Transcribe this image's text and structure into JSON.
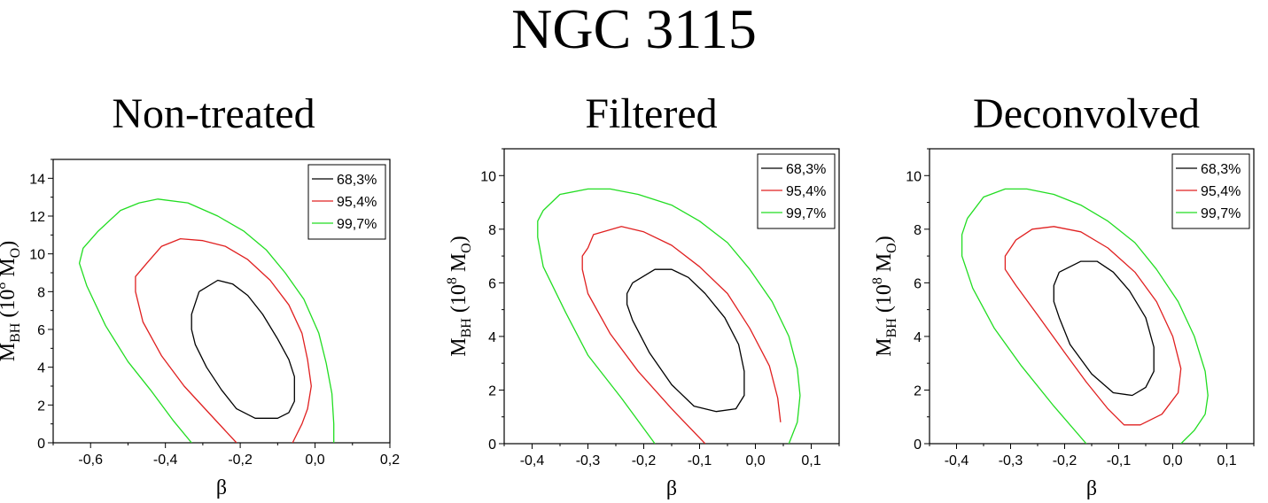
{
  "title": "NGC 3115",
  "chart_data": [
    {
      "type": "line",
      "subtitle": "Non-treated",
      "xlabel": "β",
      "ylabel_main": "M",
      "ylabel_sub": "BH",
      "ylabel_paren": "(10",
      "ylabel_exp": "8",
      "ylabel_unit": "M",
      "ylabel_unit_sub": "O",
      "ylabel_close": ")",
      "xlim": [
        -0.7,
        0.2
      ],
      "ylim": [
        0,
        15
      ],
      "xticks": [
        -0.6,
        -0.4,
        -0.2,
        0.0,
        0.2
      ],
      "xtick_labels": [
        "-0,6",
        "-0,4",
        "-0,2",
        "0,0",
        "0,2"
      ],
      "yticks": [
        0,
        2,
        4,
        6,
        8,
        10,
        12,
        14
      ],
      "ytick_labels": [
        "0",
        "2",
        "4",
        "6",
        "8",
        "10",
        "12",
        "14"
      ],
      "legend": [
        "68,3%",
        "95,4%",
        "99,7%"
      ],
      "colors": [
        "#000000",
        "#e02020",
        "#22dd22"
      ],
      "series": [
        {
          "name": "68,3%",
          "x": [
            -0.31,
            -0.26,
            -0.22,
            -0.18,
            -0.14,
            -0.1,
            -0.07,
            -0.055,
            -0.055,
            -0.07,
            -0.1,
            -0.16,
            -0.21,
            -0.25,
            -0.29,
            -0.32,
            -0.33,
            -0.33,
            -0.31
          ],
          "y": [
            8.0,
            8.6,
            8.4,
            7.8,
            6.8,
            5.5,
            4.4,
            3.5,
            2.2,
            1.6,
            1.3,
            1.3,
            1.8,
            2.8,
            4.0,
            5.2,
            6.0,
            6.8,
            8.0
          ]
        },
        {
          "name": "95,4%",
          "x": [
            -0.45,
            -0.41,
            -0.36,
            -0.3,
            -0.24,
            -0.18,
            -0.12,
            -0.07,
            -0.035,
            -0.02,
            -0.01,
            -0.02,
            -0.035,
            -0.05,
            -0.06,
            null,
            -0.21,
            -0.28,
            -0.35,
            -0.41,
            -0.46,
            -0.48,
            -0.48,
            -0.45
          ],
          "y": [
            9.5,
            10.4,
            10.8,
            10.7,
            10.4,
            9.7,
            8.6,
            7.3,
            5.8,
            4.4,
            3.0,
            1.8,
            1.0,
            0.4,
            0.0,
            null,
            0.0,
            1.5,
            3.0,
            4.6,
            6.4,
            8.0,
            8.8,
            9.5
          ]
        },
        {
          "name": "99,7%",
          "x": [
            -0.58,
            -0.52,
            -0.47,
            -0.42,
            -0.34,
            -0.26,
            -0.19,
            -0.13,
            -0.08,
            -0.03,
            0.01,
            0.03,
            0.045,
            0.05,
            0.05,
            null,
            -0.33,
            -0.38,
            -0.44,
            -0.5,
            -0.56,
            -0.61,
            -0.63,
            -0.62,
            -0.58
          ],
          "y": [
            11.2,
            12.3,
            12.7,
            12.9,
            12.7,
            12.0,
            11.2,
            10.2,
            9.0,
            7.6,
            5.8,
            4.2,
            2.6,
            1.0,
            0.0,
            null,
            0.0,
            1.2,
            2.8,
            4.3,
            6.2,
            8.3,
            9.5,
            10.3,
            11.2
          ]
        }
      ]
    },
    {
      "type": "line",
      "subtitle": "Filtered",
      "xlabel": "β",
      "ylabel_main": "M",
      "ylabel_sub": "BH",
      "ylabel_paren": "(10",
      "ylabel_exp": "8",
      "ylabel_unit": "M",
      "ylabel_unit_sub": "O",
      "ylabel_close": ")",
      "xlim": [
        -0.45,
        0.15
      ],
      "ylim": [
        0,
        11
      ],
      "xticks": [
        -0.4,
        -0.3,
        -0.2,
        -0.1,
        0.0,
        0.1
      ],
      "xtick_labels": [
        "-0,4",
        "-0,3",
        "-0,2",
        "-0,1",
        "0,0",
        "0,1"
      ],
      "yticks": [
        0,
        2,
        4,
        6,
        8,
        10
      ],
      "ytick_labels": [
        "0",
        "2",
        "4",
        "6",
        "8",
        "10"
      ],
      "legend": [
        "68,3%",
        "95,4%",
        "99,7%"
      ],
      "colors": [
        "#000000",
        "#e02020",
        "#22dd22"
      ],
      "series": [
        {
          "name": "68,3%",
          "x": [
            -0.22,
            -0.18,
            -0.15,
            -0.12,
            -0.09,
            -0.055,
            -0.03,
            -0.02,
            -0.02,
            -0.035,
            -0.07,
            -0.11,
            -0.15,
            -0.19,
            -0.22,
            -0.23,
            -0.23,
            -0.22
          ],
          "y": [
            6.0,
            6.5,
            6.5,
            6.2,
            5.6,
            4.7,
            3.7,
            2.7,
            1.8,
            1.3,
            1.2,
            1.4,
            2.2,
            3.4,
            4.6,
            5.2,
            5.6,
            6.0
          ]
        },
        {
          "name": "95,4%",
          "x": [
            -0.3,
            -0.29,
            -0.24,
            -0.2,
            -0.15,
            -0.1,
            -0.05,
            -0.01,
            0.025,
            0.04,
            0.045,
            null,
            -0.05,
            null,
            -0.09,
            -0.15,
            -0.21,
            -0.26,
            -0.3,
            -0.31,
            -0.31,
            -0.3
          ],
          "y": [
            7.3,
            7.8,
            8.1,
            7.9,
            7.4,
            6.6,
            5.6,
            4.3,
            2.9,
            1.7,
            0.8,
            null,
            0.0,
            null,
            0.0,
            1.3,
            2.7,
            4.1,
            5.6,
            6.5,
            7.0,
            7.3
          ]
        },
        {
          "name": "99,7%",
          "x": [
            -0.38,
            -0.35,
            -0.3,
            -0.26,
            -0.21,
            -0.15,
            -0.1,
            -0.05,
            -0.01,
            0.03,
            0.06,
            0.075,
            0.08,
            0.075,
            0.06,
            null,
            -0.18,
            -0.24,
            -0.3,
            -0.34,
            -0.38,
            -0.39,
            -0.39,
            -0.38
          ],
          "y": [
            8.7,
            9.3,
            9.5,
            9.5,
            9.3,
            8.9,
            8.3,
            7.5,
            6.5,
            5.3,
            4.0,
            2.8,
            1.8,
            0.8,
            0.0,
            null,
            0.0,
            1.7,
            3.3,
            4.9,
            6.6,
            7.7,
            8.3,
            8.7
          ]
        }
      ]
    },
    {
      "type": "line",
      "subtitle": "Deconvolved",
      "xlabel": "β",
      "ylabel_main": "M",
      "ylabel_sub": "BH",
      "ylabel_paren": "(10",
      "ylabel_exp": "8",
      "ylabel_unit": "M",
      "ylabel_unit_sub": "O",
      "ylabel_close": ")",
      "xlim": [
        -0.45,
        0.15
      ],
      "ylim": [
        0,
        11
      ],
      "xticks": [
        -0.4,
        -0.3,
        -0.2,
        -0.1,
        0.0,
        0.1
      ],
      "xtick_labels": [
        "-0,4",
        "-0,3",
        "-0,2",
        "-0,1",
        "0,0",
        "0,1"
      ],
      "yticks": [
        0,
        2,
        4,
        6,
        8,
        10
      ],
      "ytick_labels": [
        "0",
        "2",
        "4",
        "6",
        "8",
        "10"
      ],
      "legend": [
        "68,3%",
        "95,4%",
        "99,7%"
      ],
      "colors": [
        "#000000",
        "#e02020",
        "#22dd22"
      ],
      "series": [
        {
          "name": "68,3%",
          "x": [
            -0.21,
            -0.17,
            -0.14,
            -0.11,
            -0.08,
            -0.05,
            -0.035,
            -0.035,
            -0.05,
            -0.075,
            -0.11,
            -0.15,
            -0.19,
            -0.21,
            -0.22,
            -0.22,
            -0.21
          ],
          "y": [
            6.4,
            6.8,
            6.8,
            6.4,
            5.7,
            4.7,
            3.6,
            2.7,
            2.1,
            1.8,
            1.9,
            2.6,
            3.7,
            4.7,
            5.3,
            5.9,
            6.4
          ]
        },
        {
          "name": "95,4%",
          "x": [
            -0.29,
            -0.26,
            -0.22,
            -0.17,
            -0.12,
            -0.07,
            -0.03,
            0.0,
            0.015,
            0.01,
            -0.02,
            -0.06,
            -0.09,
            -0.12,
            -0.16,
            -0.2,
            -0.25,
            -0.29,
            -0.31,
            -0.31,
            -0.29
          ],
          "y": [
            7.6,
            8.0,
            8.1,
            7.9,
            7.3,
            6.4,
            5.3,
            4.0,
            2.8,
            1.9,
            1.1,
            0.7,
            0.7,
            1.3,
            2.3,
            3.4,
            4.8,
            5.9,
            6.5,
            7.0,
            7.6
          ]
        },
        {
          "name": "99,7%",
          "x": [
            -0.38,
            -0.35,
            -0.31,
            -0.27,
            -0.22,
            -0.17,
            -0.12,
            -0.07,
            -0.03,
            0.01,
            0.04,
            0.06,
            0.065,
            0.06,
            0.04,
            0.015,
            null,
            -0.16,
            -0.22,
            -0.28,
            -0.33,
            -0.37,
            -0.39,
            -0.39,
            -0.38
          ],
          "y": [
            8.4,
            9.2,
            9.5,
            9.5,
            9.3,
            8.9,
            8.3,
            7.5,
            6.5,
            5.3,
            4.0,
            2.7,
            1.8,
            1.1,
            0.5,
            0.0,
            null,
            0.0,
            1.4,
            2.9,
            4.3,
            5.8,
            7.0,
            7.8,
            8.4
          ]
        }
      ]
    }
  ]
}
